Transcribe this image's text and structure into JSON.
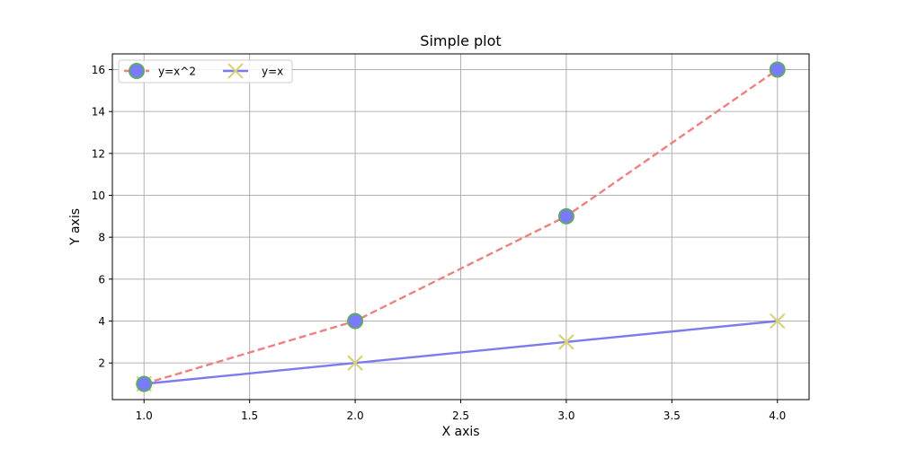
{
  "chart_data": {
    "type": "line",
    "title": "Simple plot",
    "xlabel": "X axis",
    "ylabel": "Y axis",
    "xlim": [
      0.85,
      4.15
    ],
    "ylim": [
      0.25,
      16.75
    ],
    "xticks": [
      1.0,
      1.5,
      2.0,
      2.5,
      3.0,
      3.5,
      4.0
    ],
    "yticks": [
      2,
      4,
      6,
      8,
      10,
      12,
      14,
      16
    ],
    "xtick_labels": [
      "1.0",
      "1.5",
      "2.0",
      "2.5",
      "3.0",
      "3.5",
      "4.0"
    ],
    "ytick_labels": [
      "2",
      "4",
      "6",
      "8",
      "10",
      "12",
      "14",
      "16"
    ],
    "grid": true,
    "legend_position": "top-left",
    "series": [
      {
        "name": "y=x^2",
        "x": [
          1,
          2,
          3,
          4
        ],
        "y": [
          1,
          4,
          9,
          16
        ],
        "line_color": "#f08080",
        "line_style": "dashed",
        "marker": "circle",
        "marker_face": "#7a7aff",
        "marker_edge": "#5fa86a"
      },
      {
        "name": "y=x",
        "x": [
          1,
          2,
          3,
          4
        ],
        "y": [
          1,
          2,
          3,
          4
        ],
        "line_color": "#7b7bef",
        "line_style": "solid",
        "marker": "x",
        "marker_color": "#d8d27a"
      }
    ]
  }
}
